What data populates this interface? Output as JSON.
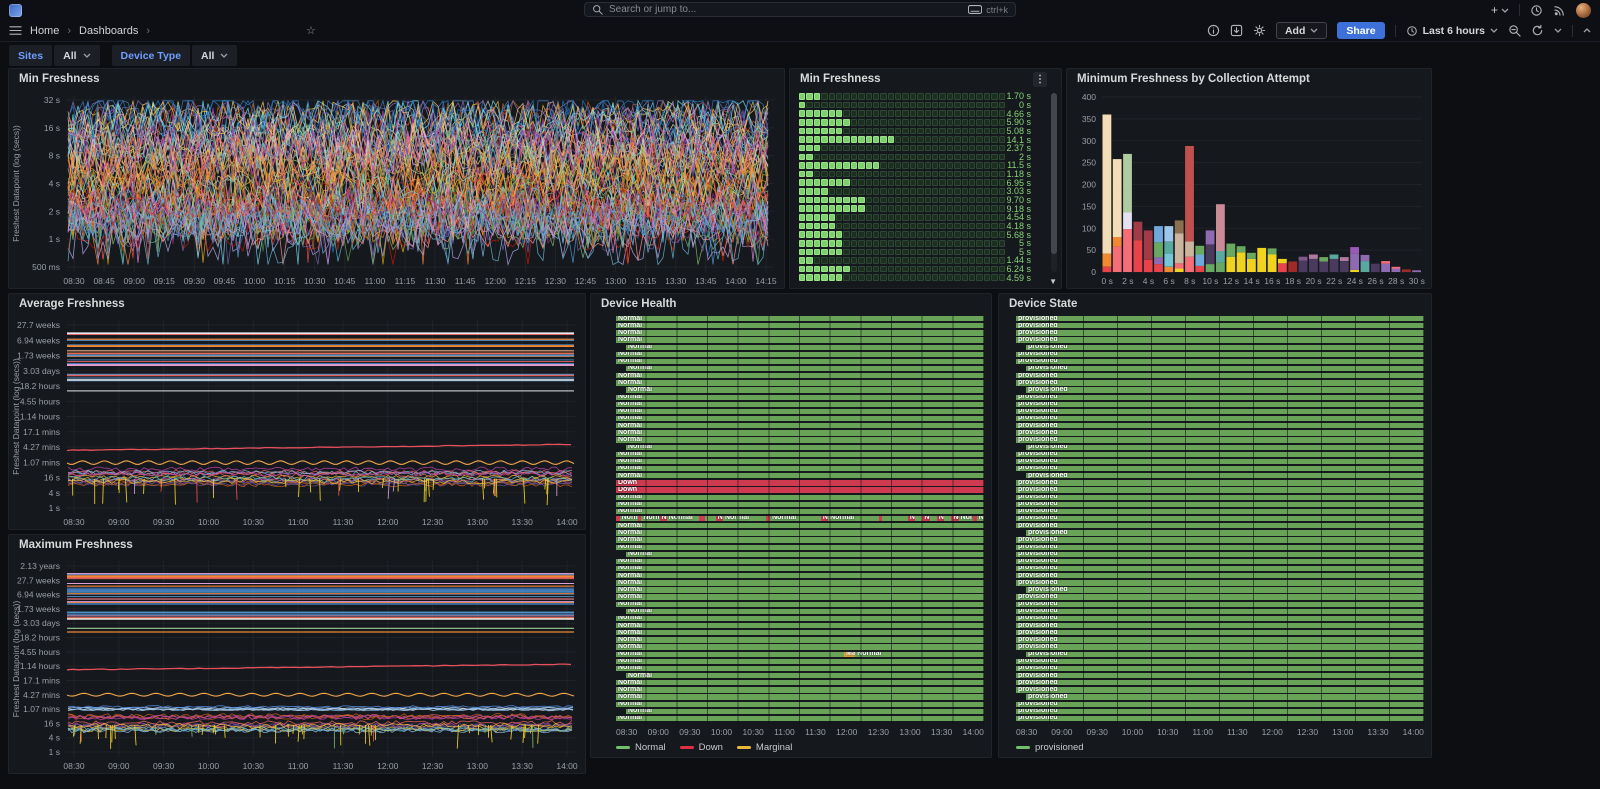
{
  "ui": {
    "nav": {
      "search_placeholder": "Search or jump to...",
      "search_shortcut": "ctrl+k",
      "breadcrumb": [
        "Home",
        "Dashboards"
      ],
      "plus_label": "+"
    },
    "toolbar": {
      "add_label": "Add",
      "share_label": "Share",
      "time_range": "Last 6 hours"
    },
    "filters": [
      {
        "label": "Sites",
        "value": "All"
      },
      {
        "label": "Device Type",
        "value": "All"
      }
    ],
    "colors": {
      "accent_blue": "#3D71D9",
      "link_blue": "#6E9FFF",
      "green": "#73BF69",
      "red": "#E02F44",
      "yellow": "#EAB839",
      "panel_bg": "#15181d",
      "page_bg": "#0d0e12"
    }
  },
  "palette": [
    "#7EB26D",
    "#EAB839",
    "#6ED0E0",
    "#EF843C",
    "#E24D42",
    "#1F78C1",
    "#BA43A9",
    "#705DA0",
    "#508642",
    "#CCA300",
    "#447EBC",
    "#C15C17",
    "#F4D598",
    "#70DBED",
    "#F9BA8F",
    "#F29191",
    "#82B5D8",
    "#E5A8E2",
    "#AEA2E0",
    "#629E51",
    "#E5AC0E",
    "#64B0C8",
    "#E0752D",
    "#BF1B00",
    "#5195CE",
    "#962D82",
    "#614D93",
    "#9AC48A",
    "#F2C96D",
    "#65C5DB",
    "#F9934E",
    "#EA6460",
    "#D683CE",
    "#B7DBAB",
    "#806EB7"
  ],
  "chart_data": [
    {
      "id": "min-freshness-series",
      "type": "line",
      "title": "Min Freshness",
      "ylabel": "Freshest Datapoint (log (secs))",
      "yticks": [
        "32 s",
        "16 s",
        "8 s",
        "4 s",
        "2 s",
        "1 s",
        "500 ms"
      ],
      "xticks": [
        "08:30",
        "08:45",
        "09:00",
        "09:15",
        "09:30",
        "09:45",
        "10:00",
        "10:15",
        "10:30",
        "10:45",
        "11:00",
        "11:15",
        "11:30",
        "11:45",
        "12:00",
        "12:15",
        "12:30",
        "12:45",
        "13:00",
        "13:15",
        "13:30",
        "13:45",
        "14:00",
        "14:15"
      ],
      "layers": [
        {
          "kind": "noise",
          "count": 78,
          "yMin": 0.04,
          "yMax": 0.82,
          "ampMin": 0.15,
          "ampMax": 0.38,
          "seed": 11,
          "step": 5
        }
      ]
    },
    {
      "id": "min-freshness-gauge",
      "type": "bar",
      "title": "Min Freshness",
      "unit": "s",
      "max_cells": 28,
      "rows": [
        {
          "value": "1.70 s",
          "lit": 3
        },
        {
          "value": "0 s",
          "lit": 1
        },
        {
          "value": "4.66 s",
          "lit": 6
        },
        {
          "value": "5.90 s",
          "lit": 7
        },
        {
          "value": "5.08 s",
          "lit": 6
        },
        {
          "value": "14.1 s",
          "lit": 13
        },
        {
          "value": "2.37 s",
          "lit": 3
        },
        {
          "value": "2 s",
          "lit": 2
        },
        {
          "value": "11.5 s",
          "lit": 11
        },
        {
          "value": "1.18 s",
          "lit": 2
        },
        {
          "value": "6.95 s",
          "lit": 7
        },
        {
          "value": "3.03 s",
          "lit": 4
        },
        {
          "value": "9.70 s",
          "lit": 9
        },
        {
          "value": "9.18 s",
          "lit": 9
        },
        {
          "value": "4.54 s",
          "lit": 5
        },
        {
          "value": "4.18 s",
          "lit": 5
        },
        {
          "value": "5.68 s",
          "lit": 6
        },
        {
          "value": "5 s",
          "lit": 6
        },
        {
          "value": "5 s",
          "lit": 6
        },
        {
          "value": "1.44 s",
          "lit": 2
        },
        {
          "value": "6.24 s",
          "lit": 7
        },
        {
          "value": "4.59 s",
          "lit": 6
        }
      ]
    },
    {
      "id": "min-by-collection-attempt",
      "type": "bar",
      "stacked": true,
      "title": "Minimum Freshness by Collection Attempt",
      "ylim": [
        0,
        400
      ],
      "yticks": [
        "400",
        "350",
        "300",
        "250",
        "200",
        "150",
        "100",
        "50",
        "0"
      ],
      "xticks": [
        "0 s",
        "2 s",
        "4 s",
        "6 s",
        "8 s",
        "10 s",
        "12 s",
        "14 s",
        "16 s",
        "18 s",
        "20 s",
        "22 s",
        "24 s",
        "26 s",
        "28 s",
        "30 s"
      ],
      "buckets": [
        [
          [
            "#E8424A",
            12
          ],
          [
            "#F08931",
            30
          ],
          [
            "#F3DDB6",
            318
          ]
        ],
        [
          [
            "#F56E77",
            58
          ],
          [
            "#F08931",
            22
          ],
          [
            "#F3DDB6",
            178
          ]
        ],
        [
          [
            "#F56E77",
            98
          ],
          [
            "#E4E1F2",
            38
          ],
          [
            "#AECBA2",
            134
          ]
        ],
        [
          [
            "#E8424A",
            72
          ],
          [
            "#A13B47",
            43
          ]
        ],
        [
          [
            "#E8424A",
            28
          ],
          [
            "#A13B47",
            67
          ]
        ],
        [
          [
            "#E8424A",
            18
          ],
          [
            "#8E6BB0",
            16
          ],
          [
            "#69A860",
            34
          ],
          [
            "#6FA8DC",
            37
          ]
        ],
        [
          [
            "#F08931",
            12
          ],
          [
            "#76C6D8",
            30
          ],
          [
            "#5BA8A0",
            28
          ],
          [
            "#9FC5E8",
            35
          ]
        ],
        [
          [
            "#EFD31F",
            8
          ],
          [
            "#F56E77",
            12
          ],
          [
            "#CBB59F",
            68
          ],
          [
            "#8A6F52",
            30
          ]
        ],
        [
          [
            "#F56E77",
            35
          ],
          [
            "#CBB59F",
            35
          ],
          [
            "#C0504E",
            218
          ]
        ],
        [
          [
            "#E8424A",
            14
          ],
          [
            "#6FA8DC",
            26
          ],
          [
            "#69A860",
            20
          ]
        ],
        [
          [
            "#69A860",
            18
          ],
          [
            "#4A3A5E",
            45
          ],
          [
            "#8E6BB0",
            32
          ]
        ],
        [
          [
            "#69A860",
            22
          ],
          [
            "#5BA8A0",
            26
          ],
          [
            "#C98B96",
            107
          ]
        ],
        [
          [
            "#EFD31F",
            35
          ],
          [
            "#69A860",
            30
          ]
        ],
        [
          [
            "#EFD31F",
            45
          ],
          [
            "#69A860",
            14
          ]
        ],
        [
          [
            "#EFD31F",
            30
          ],
          [
            "#69A860",
            14
          ]
        ],
        [
          [
            "#EFD31F",
            55
          ]
        ],
        [
          [
            "#EFD31F",
            40
          ],
          [
            "#69A860",
            14
          ]
        ],
        [
          [
            "#E8424A",
            20
          ],
          [
            "#EFD31F",
            10
          ]
        ],
        [
          [
            "#9E2B25",
            24
          ]
        ],
        [
          [
            "#4A3A5E",
            26
          ],
          [
            "#7E5A8A",
            9
          ]
        ],
        [
          [
            "#4A3A5E",
            30
          ],
          [
            "#B07AA1",
            10
          ]
        ],
        [
          [
            "#4A3A5E",
            24
          ],
          [
            "#69A860",
            10
          ]
        ],
        [
          [
            "#4A3A5E",
            30
          ],
          [
            "#5BA8A0",
            10
          ]
        ],
        [
          [
            "#4A3A5E",
            25
          ],
          [
            "#B07AA1",
            9
          ]
        ],
        [
          [
            "#EFD31F",
            5
          ],
          [
            "#8E6BB0",
            38
          ],
          [
            "#9B59B6",
            14
          ]
        ],
        [
          [
            "#5BA8A0",
            25
          ],
          [
            "#8E6BB0",
            14
          ]
        ],
        [
          [
            "#4A3A5E",
            19
          ]
        ],
        [
          [
            "#8E6BB0",
            19
          ],
          [
            "#F56E77",
            6
          ]
        ],
        [
          [
            "#8E6BB0",
            8
          ],
          [
            "#F56E77",
            4
          ]
        ],
        [
          [
            "#9E2B25",
            6
          ]
        ],
        [
          [
            "#8E6BB0",
            4
          ]
        ]
      ]
    },
    {
      "id": "average-freshness",
      "type": "line",
      "title": "Average Freshness",
      "ylabel": "Freshest Datapoint (log (secs))",
      "yticks": [
        "27.7 weeks",
        "6.94 weeks",
        "1.73 weeks",
        "3.03 days",
        "18.2 hours",
        "4.55 hours",
        "1.14 hours",
        "17.1 mins",
        "4.27 mins",
        "1.07 mins",
        "16 s",
        "4 s",
        "1 s"
      ],
      "xticks": [
        "08:30",
        "09:00",
        "09:30",
        "10:00",
        "10:30",
        "11:00",
        "11:30",
        "12:00",
        "12:30",
        "13:00",
        "13:30",
        "14:00"
      ],
      "layers": [
        {
          "kind": "flats",
          "from": 0.02,
          "to": 0.33,
          "count": 26,
          "seed": 21,
          "specials": [
            {
              "f": 0.045,
              "color": "#E8E8EA",
              "w": 1.6
            },
            {
              "f": 0.115,
              "color": "#F08931",
              "w": 1.8
            },
            {
              "f": 0.3,
              "color": "#D9DADC",
              "w": 1.6
            },
            {
              "f": 0.36,
              "color": "#B8BBBE",
              "w": 1.2
            }
          ]
        },
        {
          "kind": "trend",
          "f0": 0.685,
          "f1": 0.652,
          "color": "#E8505B",
          "w": 1.3,
          "seed": 3
        },
        {
          "kind": "wave",
          "f": 0.752,
          "amp": 0.01,
          "period": 22,
          "color": "#F5A54A",
          "w": 1.1
        },
        {
          "kind": "band",
          "f": 0.828,
          "spread": 0.045,
          "count": 16,
          "amp": 0.012,
          "seed": 31,
          "step": 4
        },
        {
          "kind": "spikes",
          "fBase": 0.84,
          "fTip": 0.985,
          "count": 42,
          "seed": 41,
          "color": "#EFD31F",
          "alts": [
            "#E8505B",
            "#CE9DD9"
          ]
        }
      ]
    },
    {
      "id": "device-health",
      "type": "state-timeline",
      "title": "Device Health",
      "xticks": [
        "08:30",
        "09:00",
        "09:30",
        "10:00",
        "10:30",
        "11:00",
        "11:30",
        "12:00",
        "12:30",
        "13:00",
        "13:30",
        "14:00"
      ],
      "legend": [
        {
          "label": "Normal",
          "color": "#73BF69"
        },
        {
          "label": "Down",
          "color": "#E02F44"
        },
        {
          "label": "Marginal",
          "color": "#EAB839"
        }
      ],
      "bar_colors": {
        "Normal": "#69A358",
        "Down": "#CE3B50",
        "Marginal": "#D9A43A"
      },
      "row_count": 57,
      "default_state": "Normal",
      "indent_rows": [
        4,
        7,
        10,
        18,
        33,
        41,
        50,
        55
      ],
      "down_rows": [
        23,
        24
      ],
      "special_rows": [
        {
          "index": 28,
          "segments": [
            [
              "Down",
              1,
              ""
            ],
            [
              "Normal",
              5,
              "Norm"
            ],
            [
              "Down",
              1,
              ""
            ],
            [
              "Normal",
              5,
              "Norm"
            ],
            [
              "Down",
              2,
              "No"
            ],
            [
              "Normal",
              9,
              "Normal"
            ],
            [
              "Down",
              1.5,
              ""
            ],
            [
              "Normal",
              3,
              ""
            ],
            [
              "Down",
              2,
              "No"
            ],
            [
              "Normal",
              12,
              "Normal"
            ],
            [
              "Down",
              1,
              ""
            ],
            [
              "Normal",
              14,
              "Normal"
            ],
            [
              "Down",
              2,
              "No"
            ],
            [
              "Normal",
              14,
              "Normal"
            ],
            [
              "Down",
              1,
              ""
            ],
            [
              "Normal",
              7,
              ""
            ],
            [
              "Down",
              2,
              "No"
            ],
            [
              "Normal",
              2,
              ""
            ],
            [
              "Down",
              2,
              "No"
            ],
            [
              "Normal",
              2,
              ""
            ],
            [
              "Down",
              2,
              "No"
            ],
            [
              "Normal",
              2,
              ""
            ],
            [
              "Down",
              2,
              "No"
            ],
            [
              "Normal",
              4,
              "Norm"
            ],
            [
              "Down",
              1,
              ""
            ],
            [
              "Normal",
              2,
              "N"
            ]
          ]
        },
        {
          "index": 47,
          "segments": [
            [
              "Normal",
              62,
              "Normal"
            ],
            [
              "Marginal",
              3,
              "Mar"
            ],
            [
              "Normal",
              35,
              "Normal"
            ]
          ]
        }
      ]
    },
    {
      "id": "device-state",
      "type": "state-timeline",
      "title": "Device State",
      "xticks": [
        "08:30",
        "09:00",
        "09:30",
        "10:00",
        "10:30",
        "11:00",
        "11:30",
        "12:00",
        "12:30",
        "13:00",
        "13:30",
        "14:00"
      ],
      "legend": [
        {
          "label": "provisioned",
          "color": "#73BF69"
        }
      ],
      "bar_colors": {
        "provisioned": "#69A358"
      },
      "row_count": 57,
      "default_state": "provisioned",
      "indent_rows": [
        4,
        7,
        10,
        18,
        22,
        30,
        38,
        47,
        53
      ],
      "down_rows": [],
      "special_rows": []
    },
    {
      "id": "maximum-freshness",
      "type": "line",
      "title": "Maximum Freshness",
      "ylabel": "Freshest Datapoint (log (secs))",
      "yticks": [
        "2.13 years",
        "27.7 weeks",
        "6.94 weeks",
        "1.73 weeks",
        "3.03 days",
        "18.2 hours",
        "4.55 hours",
        "1.14 hours",
        "17.1 mins",
        "4.27 mins",
        "1.07 mins",
        "16 s",
        "4 s",
        "1 s"
      ],
      "xticks": [
        "08:30",
        "09:00",
        "09:30",
        "10:00",
        "10:30",
        "11:00",
        "11:30",
        "12:00",
        "12:30",
        "13:00",
        "13:30",
        "14:00"
      ],
      "layers": [
        {
          "kind": "flats",
          "from": 0.02,
          "to": 0.3,
          "count": 28,
          "seed": 51,
          "specials": [
            {
              "f": 0.055,
              "color": "#F08931",
              "w": 1.8
            },
            {
              "f": 0.285,
              "color": "#E8E8EA",
              "w": 1.6
            },
            {
              "f": 0.335,
              "color": "#9CCB8E",
              "w": 1.2
            },
            {
              "f": 0.355,
              "color": "#F08931",
              "w": 1.2
            }
          ]
        },
        {
          "kind": "trend",
          "f0": 0.558,
          "f1": 0.528,
          "color": "#E8505B",
          "w": 1.3,
          "seed": 6
        },
        {
          "kind": "wave",
          "f": 0.692,
          "amp": 0.008,
          "period": 24,
          "color": "#F5A54A",
          "w": 1.1
        },
        {
          "kind": "band",
          "f": 0.765,
          "spread": 0.012,
          "count": 6,
          "amp": 0.006,
          "seed": 61,
          "step": 5,
          "colors": [
            "#7EB8E8",
            "#A8C8E8",
            "#D9DADC",
            "#5794F2"
          ]
        },
        {
          "kind": "band",
          "f": 0.845,
          "spread": 0.04,
          "count": 16,
          "amp": 0.012,
          "seed": 71,
          "step": 4
        },
        {
          "kind": "spikes",
          "fBase": 0.855,
          "fTip": 0.985,
          "count": 45,
          "seed": 81,
          "color": "#EFD31F",
          "alts": [
            "#E8505B",
            "#7EB26D"
          ]
        }
      ]
    }
  ]
}
